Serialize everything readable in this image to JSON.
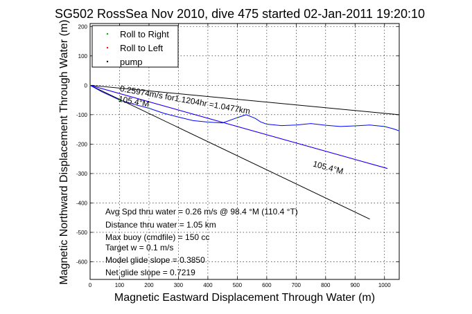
{
  "chart_data": {
    "type": "line",
    "title": "SG502 RossSea Nov 2010, dive 475 started 02-Jan-2011 19:20:10",
    "xlabel": "Magnetic Eastward Displacement Through Water (m)",
    "ylabel": "Magnetic Northward Displacement Through Water (m)",
    "xlim": [
      0,
      1050
    ],
    "ylim": [
      -660,
      210
    ],
    "xticks": [
      0,
      100,
      200,
      300,
      400,
      500,
      600,
      700,
      800,
      900,
      1000
    ],
    "yticks": [
      200,
      100,
      0,
      -100,
      -200,
      -300,
      -400,
      -500,
      -600
    ],
    "grid": true,
    "legend": {
      "location": "top-left",
      "entries": [
        "Roll to Right",
        "Roll to Left",
        "pump"
      ]
    },
    "legend_colors": [
      "#00aa00",
      "#ff0000",
      "#000000"
    ],
    "series": [
      {
        "name": "Roll to Right",
        "color": "#0000ff",
        "x": [
          0,
          40,
          100,
          150,
          200,
          250,
          300,
          350,
          400,
          450,
          500,
          530,
          560,
          580,
          600,
          650,
          700,
          750,
          800,
          850,
          900,
          950,
          1000,
          1030,
          1050
        ],
        "y": [
          0,
          -22,
          -50,
          -65,
          -78,
          -95,
          -108,
          -120,
          -125,
          -128,
          -110,
          -100,
          -112,
          -125,
          -132,
          -137,
          -135,
          -130,
          -136,
          -140,
          -138,
          -135,
          -140,
          -148,
          -155
        ]
      }
    ],
    "lines": [
      {
        "x": [
          0,
          1050
        ],
        "y": [
          0,
          -100
        ],
        "color": "#000000"
      },
      {
        "x": [
          0,
          950
        ],
        "y": [
          0,
          -455
        ],
        "color": "#000000"
      },
      {
        "x": [
          0,
          1010
        ],
        "y": [
          0,
          -283
        ],
        "color": "#ff00ff"
      },
      {
        "x": [
          0,
          1010
        ],
        "y": [
          0,
          -283
        ],
        "color": "#0000ff"
      }
    ],
    "annotations": [
      {
        "text": "0.25974m/s for1.1204hr =1.0477km",
        "x": 100,
        "y": -20,
        "rotation": 10
      },
      {
        "text": "105.4°M",
        "x": 95,
        "y": -55,
        "rotation": 10
      },
      {
        "text": "105.4°M",
        "x": 755,
        "y": -275,
        "rotation": 15
      }
    ],
    "summary": [
      "Avg Spd thru water =  0.26 m/s @  98.4   °M (110.4 °T)",
      "Distance thru water = 1.05 km",
      "Max buoy (cmdfile) = 150 cc",
      "Target w = 0.1 m/s",
      "Model glide slope = 0.3850",
      "Net glide slope = 0.7219"
    ]
  }
}
